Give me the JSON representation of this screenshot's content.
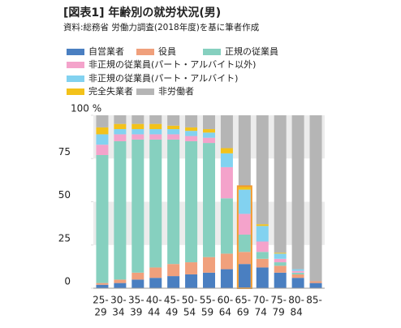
{
  "chart_data": {
    "type": "stacked_bar",
    "title": "[図表1] 年齢別の就労状況(男)",
    "subtitle": "資料:総務省 労働力調査(2018年度)を基に筆者作成",
    "categories": [
      [
        "25-",
        "29"
      ],
      [
        "30-",
        "34"
      ],
      [
        "35-",
        "39"
      ],
      [
        "40-",
        "44"
      ],
      [
        "45-",
        "49"
      ],
      [
        "50-",
        "54"
      ],
      [
        "55-",
        "59"
      ],
      [
        "60-",
        "64"
      ],
      [
        "65-",
        "69"
      ],
      [
        "70-",
        "74"
      ],
      [
        "75-",
        "79"
      ],
      [
        "80-",
        "84"
      ],
      [
        "85-"
      ]
    ],
    "series": [
      {
        "name": "自営業者",
        "color": "#4a7fc1",
        "values": [
          2,
          3,
          5,
          6,
          7,
          8,
          9,
          11,
          14,
          12,
          9,
          6,
          3
        ]
      },
      {
        "name": "役員",
        "color": "#f0a07c",
        "values": [
          1,
          2,
          4,
          6,
          7,
          7,
          9,
          9,
          7,
          5,
          4,
          2,
          1
        ]
      },
      {
        "name": "正規の従業員",
        "color": "#86d0bf",
        "values": [
          74,
          80,
          77,
          74,
          72,
          70,
          66,
          32,
          10,
          4,
          2,
          1,
          0
        ]
      },
      {
        "name": "非正規の従業員(パート・アルバイト以外)",
        "color": "#f4a3cb",
        "values": [
          6,
          4,
          3,
          3,
          3,
          3,
          3,
          18,
          12,
          6,
          2,
          1,
          0
        ]
      },
      {
        "name": "非正規の従業員(パート・アルバイト)",
        "color": "#82d2f0",
        "values": [
          6,
          3,
          3,
          3,
          3,
          3,
          3,
          8,
          14,
          9,
          3,
          1,
          0
        ]
      },
      {
        "name": "完全失業者",
        "color": "#f3c21a",
        "values": [
          4,
          3,
          3,
          3,
          2,
          2,
          2,
          3,
          2,
          1,
          0.5,
          0,
          0
        ]
      },
      {
        "name": "非労働者",
        "color": "#b5b5b5",
        "values": [
          7,
          5,
          5,
          5,
          6,
          7,
          8,
          19,
          41,
          63,
          79.5,
          89,
          96
        ]
      }
    ],
    "ylim": [
      0,
      100
    ],
    "yticks": [
      0,
      25,
      50,
      {
        "value": 100,
        "label": "100 %"
      },
      75
    ],
    "grid": true
  }
}
